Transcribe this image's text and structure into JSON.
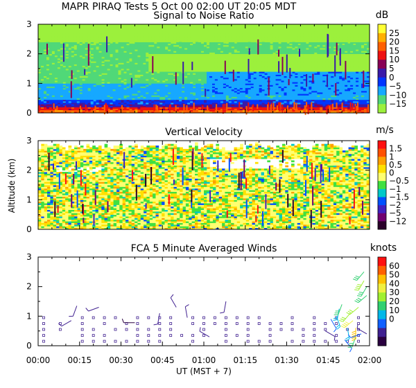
{
  "title": "MAPR PIRAQ Tests  5 Oct 00  02:00 UT  20:05  MDT",
  "xlabel": "UT  (MST + 7)",
  "x_tick_labels": [
    "00:00",
    "00:15",
    "00:30",
    "00:45",
    "01:00",
    "01:15",
    "01:30",
    "01:45",
    "02:00"
  ],
  "x_range_minutes": [
    0,
    120
  ],
  "chart_data": [
    {
      "type": "heatmap",
      "title": "Signal to Noise Ratio",
      "ylabel": "",
      "unit": "dB",
      "ylim": [
        0,
        3
      ],
      "y_ticks": [
        0,
        1,
        2,
        3
      ],
      "colorbar_labels": [
        "25",
        "20",
        "15",
        "10",
        "5",
        "0",
        "−5",
        "−10",
        "−15"
      ],
      "colorbar_colors": [
        "#ffff33",
        "#ffb000",
        "#ff6000",
        "#ee1010",
        "#880055",
        "#3a1aa8",
        "#0035ff",
        "#16a8ff",
        "#50d878",
        "#9cf03c"
      ],
      "profile": [
        {
          "z": 0.0,
          "level": 2
        },
        {
          "z": 0.08,
          "level": 3
        },
        {
          "z": 0.18,
          "level": 5
        },
        {
          "z": 0.3,
          "level": 6
        },
        {
          "z": 0.45,
          "level": 7
        },
        {
          "z": 0.6,
          "level": 7
        },
        {
          "z": 1.0,
          "level": 8
        },
        {
          "z": 1.4,
          "level": 9
        },
        {
          "z": 2.0,
          "level": 8
        },
        {
          "z": 2.4,
          "level": 9
        },
        {
          "z": 2.75,
          "level": 9
        }
      ]
    },
    {
      "type": "heatmap",
      "title": "Vertical Velocity",
      "ylabel": "Altitude (km)",
      "unit": "m/s",
      "ylim": [
        0,
        3
      ],
      "y_ticks": [
        0,
        1,
        2,
        3
      ],
      "colorbar_labels": [
        "1.5",
        "1",
        "0.5",
        "0",
        "−0.5",
        "−1",
        "−1.5",
        "−2",
        "−5",
        "−12"
      ],
      "colorbar_colors": [
        "#ff1010",
        "#ff5000",
        "#ffa000",
        "#ffe000",
        "#ffff70",
        "#40e040",
        "#00c8c8",
        "#0050ff",
        "#4020c0",
        "#700070",
        "#2a002a"
      ],
      "top_limit_km": 2.9
    },
    {
      "type": "scatter",
      "title": "FCA 5 Minute Averaged Winds",
      "ylabel": "",
      "unit": "knots",
      "ylim": [
        0,
        3
      ],
      "y_ticks": [
        0,
        1,
        2,
        3
      ],
      "colorbar_labels": [
        "60",
        "50",
        "40",
        "30",
        "20",
        "10",
        "0"
      ],
      "colorbar_colors": [
        "#ff1010",
        "#ff6000",
        "#ffc000",
        "#f0f040",
        "#a0f030",
        "#30d070",
        "#00b8e8",
        "#1060ff",
        "#402090",
        "#2a0040"
      ],
      "calm_column_times_min": [
        2,
        8,
        16,
        20,
        24,
        28,
        32,
        36,
        40,
        44,
        48,
        52,
        56,
        60,
        64,
        68,
        72,
        76,
        80,
        84,
        88,
        92,
        96,
        100,
        104,
        108,
        112,
        116
      ],
      "calm_levels_km": [
        0.15,
        0.35,
        0.55,
        0.75,
        0.95
      ],
      "barbs": [
        {
          "t": 12,
          "z": 0.85,
          "speed": 8,
          "dir": 240
        },
        {
          "t": 14,
          "z": 1.35,
          "speed": 5,
          "dir": 200
        },
        {
          "t": 22,
          "z": 1.3,
          "speed": 4,
          "dir": 250
        },
        {
          "t": 35,
          "z": 0.78,
          "speed": 3,
          "dir": 270
        },
        {
          "t": 44,
          "z": 1.1,
          "speed": 6,
          "dir": 190
        },
        {
          "t": 50,
          "z": 1.3,
          "speed": 5,
          "dir": 330
        },
        {
          "t": 54,
          "z": 0.95,
          "speed": 7,
          "dir": 350
        },
        {
          "t": 62,
          "z": 0.3,
          "speed": 6,
          "dir": 300
        },
        {
          "t": 68,
          "z": 1.5,
          "speed": 8,
          "dir": 190
        },
        {
          "t": 104,
          "z": 0.5,
          "speed": 8,
          "dir": 120
        },
        {
          "t": 106,
          "z": 0.9,
          "speed": 12,
          "dir": 150
        },
        {
          "t": 108,
          "z": 1.0,
          "speed": 18,
          "dir": 160
        },
        {
          "t": 109,
          "z": 1.25,
          "speed": 22,
          "dir": 190
        },
        {
          "t": 110,
          "z": 1.4,
          "speed": 26,
          "dir": 200
        },
        {
          "t": 111,
          "z": 0.2,
          "speed": 12,
          "dir": 140
        },
        {
          "t": 112,
          "z": 0.6,
          "speed": 18,
          "dir": 170
        },
        {
          "t": 113,
          "z": 1.1,
          "speed": 32,
          "dir": 220
        },
        {
          "t": 114,
          "z": 0.85,
          "speed": 42,
          "dir": 230
        },
        {
          "t": 115,
          "z": 0.3,
          "speed": 28,
          "dir": 200
        },
        {
          "t": 115,
          "z": 0.6,
          "speed": 50,
          "dir": 180
        },
        {
          "t": 116,
          "z": 1.3,
          "speed": 34,
          "dir": 230
        },
        {
          "t": 117,
          "z": 0.4,
          "speed": 14,
          "dir": 250
        },
        {
          "t": 118,
          "z": 2.2,
          "speed": 36,
          "dir": 210
        },
        {
          "t": 118,
          "z": 2.5,
          "speed": 30,
          "dir": 220
        },
        {
          "t": 119,
          "z": 1.7,
          "speed": 25,
          "dir": 230
        },
        {
          "t": 119,
          "z": 0.4,
          "speed": 10,
          "dir": 300
        },
        {
          "t": 119,
          "z": 2.0,
          "speed": 28,
          "dir": 210
        }
      ]
    }
  ]
}
